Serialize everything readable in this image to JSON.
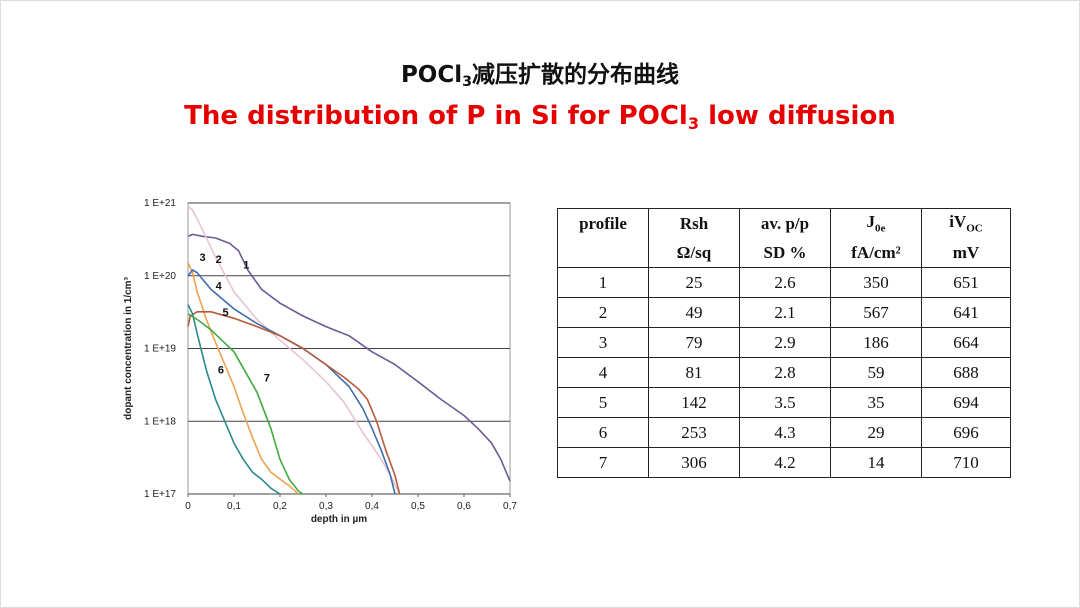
{
  "title_cn": {
    "main": "POCl",
    "sub": "3",
    "rest": "减压扩散的分布曲线"
  },
  "title_en": {
    "pre": "The distribution of P in Si for POCl",
    "sub": "3",
    "post": " low diffusion"
  },
  "chart_data": {
    "type": "line",
    "xlabel": "depth in µm",
    "ylabel": "dopant concentration  in 1/cm³",
    "x_ticks": [
      "0",
      "0,1",
      "0,2",
      "0,3",
      "0,4",
      "0,5",
      "0,6",
      "0,7"
    ],
    "y_ticks": [
      "1 E+17",
      "1 E+18",
      "1 E+19",
      "1 E+20",
      "1 E+21"
    ],
    "xlim": [
      0,
      0.7
    ],
    "ylim": [
      1e+17,
      1e+21
    ],
    "y_scale": "log",
    "grid": "horizontal",
    "series": [
      {
        "name": "1",
        "color": "#6e5a96",
        "label_at": [
          0.12,
          1.25e+20
        ],
        "x": [
          0,
          0.01,
          0.03,
          0.06,
          0.09,
          0.11,
          0.13,
          0.16,
          0.2,
          0.25,
          0.3,
          0.35,
          0.4,
          0.45,
          0.5,
          0.55,
          0.6,
          0.63,
          0.66,
          0.68,
          0.7
        ],
        "y": [
          3.5e+20,
          3.7e+20,
          3.5e+20,
          3.3e+20,
          2.8e+20,
          2.2e+20,
          1.2e+20,
          6.5e+19,
          4.2e+19,
          2.8e+19,
          2e+19,
          1.5e+19,
          9e+18,
          6e+18,
          3.5e+18,
          2e+18,
          1.2e+18,
          8e+17,
          5e+17,
          3e+17,
          1.5e+17
        ]
      },
      {
        "name": "2",
        "color": "#e8c4d0",
        "label_at": [
          0.06,
          1.5e+20
        ],
        "x": [
          0,
          0.01,
          0.03,
          0.06,
          0.1,
          0.15,
          0.2,
          0.25,
          0.3,
          0.34,
          0.38,
          0.42,
          0.44,
          0.46
        ],
        "y": [
          9e+20,
          8e+20,
          4.5e+20,
          1.8e+20,
          6e+19,
          2.5e+19,
          1.3e+19,
          7e+18,
          3.5e+18,
          1.8e+18,
          7e+17,
          3e+17,
          1.8e+17,
          1e+17
        ]
      },
      {
        "name": "3",
        "color": "#f0a050",
        "label_at": [
          0.025,
          1.6e+20
        ],
        "x": [
          0,
          0.01,
          0.02,
          0.04,
          0.06,
          0.08,
          0.1,
          0.12,
          0.14,
          0.16,
          0.18,
          0.2,
          0.22,
          0.24
        ],
        "y": [
          1.5e+20,
          1.1e+20,
          6e+19,
          2.5e+19,
          1.2e+19,
          6e+18,
          3e+18,
          1.3e+18,
          6e+17,
          3e+17,
          2e+17,
          1.6e+17,
          1.3e+17,
          1e+17
        ]
      },
      {
        "name": "4",
        "color": "#3e6db0",
        "label_at": [
          0.06,
          6.5e+19
        ],
        "x": [
          0,
          0.01,
          0.02,
          0.05,
          0.1,
          0.15,
          0.2,
          0.25,
          0.3,
          0.35,
          0.38,
          0.4,
          0.42,
          0.44,
          0.45
        ],
        "y": [
          1e+20,
          1.2e+20,
          1.1e+20,
          6.5e+19,
          3.5e+19,
          2.2e+19,
          1.5e+19,
          1e+19,
          6e+18,
          3e+18,
          1.5e+18,
          8e+17,
          4e+17,
          1.8e+17,
          1e+17
        ]
      },
      {
        "name": "5",
        "color": "#b85a3c",
        "label_at": [
          0.075,
          2.8e+19
        ],
        "x": [
          0,
          0.005,
          0.02,
          0.05,
          0.1,
          0.15,
          0.2,
          0.25,
          0.3,
          0.34,
          0.37,
          0.39,
          0.41,
          0.43,
          0.45,
          0.46
        ],
        "y": [
          2e+19,
          2.8e+19,
          3.2e+19,
          3.2e+19,
          2.6e+19,
          2e+19,
          1.5e+19,
          1e+19,
          6e+18,
          4e+18,
          2.8e+18,
          2e+18,
          1e+18,
          4e+17,
          1.8e+17,
          1e+17
        ]
      },
      {
        "name": "6",
        "color": "#2a8a88",
        "label_at": [
          0.065,
          4.5e+18
        ],
        "x": [
          0,
          0.01,
          0.02,
          0.04,
          0.06,
          0.08,
          0.1,
          0.12,
          0.14,
          0.16,
          0.18,
          0.2
        ],
        "y": [
          4e+19,
          3e+19,
          1.6e+19,
          5e+18,
          2e+18,
          1e+18,
          5e+17,
          3e+17,
          2e+17,
          1.6e+17,
          1.2e+17,
          1e+17
        ]
      },
      {
        "name": "7",
        "color": "#3eaa3e",
        "label_at": [
          0.165,
          3.5e+18
        ],
        "x": [
          0,
          0.02,
          0.05,
          0.1,
          0.15,
          0.18,
          0.2,
          0.22,
          0.24,
          0.25
        ],
        "y": [
          3e+19,
          2.5e+19,
          1.8e+19,
          9e+18,
          2.5e+18,
          8e+17,
          3e+17,
          1.6e+17,
          1.1e+17,
          1e+17
        ]
      }
    ]
  },
  "table": {
    "header": [
      "profile",
      "Rsh",
      "av. p/p",
      "J0e",
      "iVOC"
    ],
    "units": [
      "",
      "Ω/sq",
      "SD %",
      "fA/cm²",
      "mV"
    ],
    "rows": [
      [
        "1",
        "25",
        "2.6",
        "350",
        "651"
      ],
      [
        "2",
        "49",
        "2.1",
        "567",
        "641"
      ],
      [
        "3",
        "79",
        "2.9",
        "186",
        "664"
      ],
      [
        "4",
        "81",
        "2.8",
        "59",
        "688"
      ],
      [
        "5",
        "142",
        "3.5",
        "35",
        "694"
      ],
      [
        "6",
        "253",
        "4.3",
        "29",
        "696"
      ],
      [
        "7",
        "306",
        "4.2",
        "14",
        "710"
      ]
    ]
  }
}
